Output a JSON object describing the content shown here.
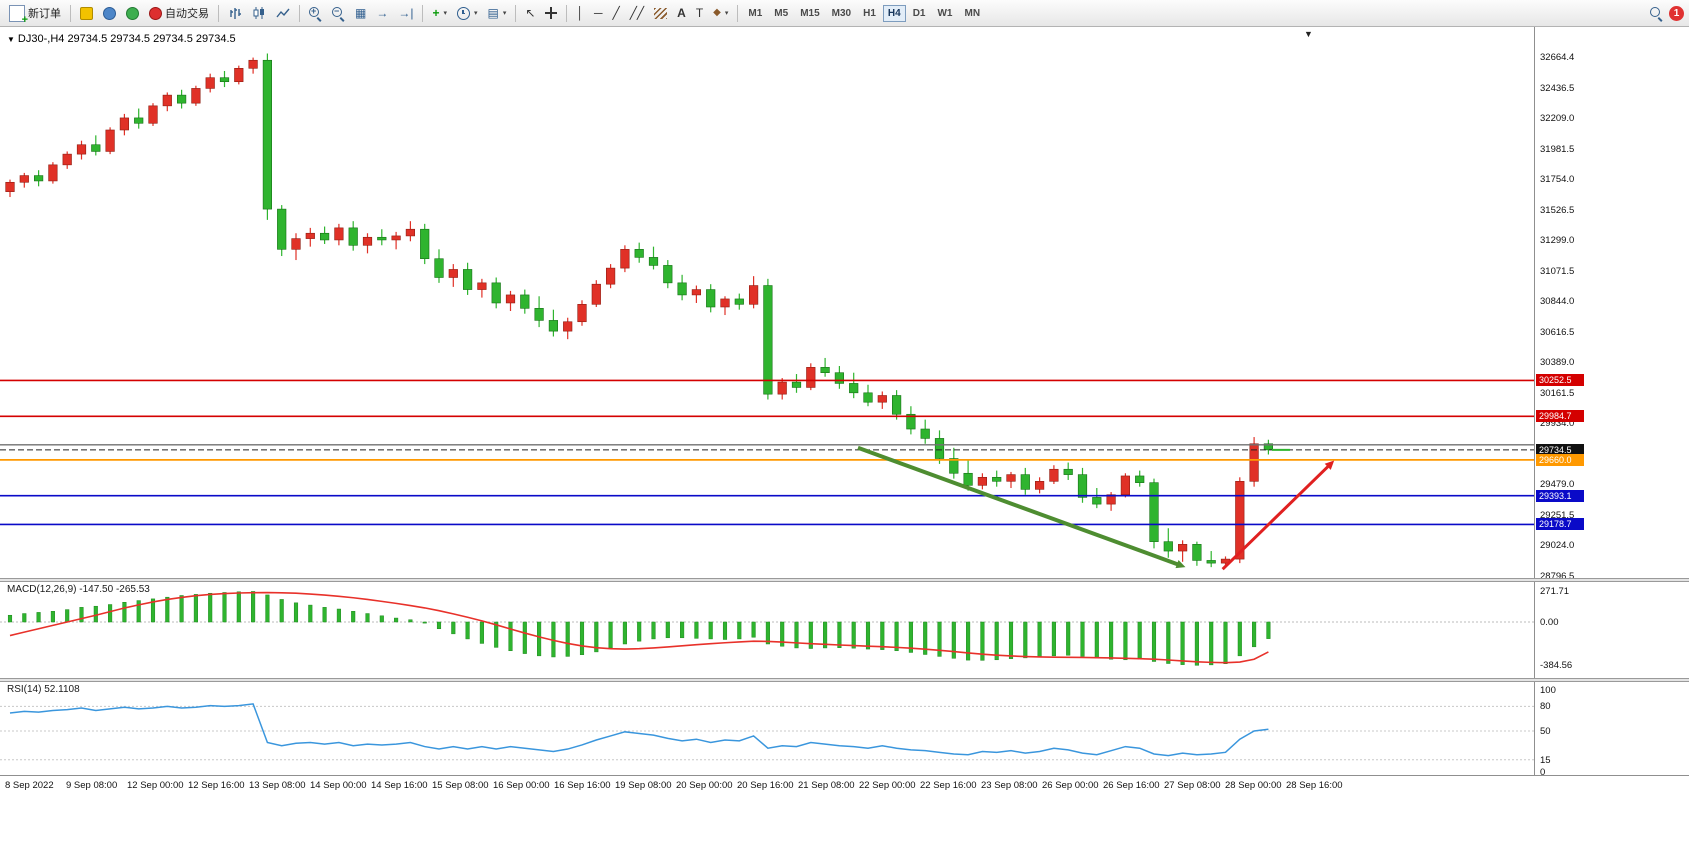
{
  "toolbar": {
    "new_order_label": "新订单",
    "autotrading_label": "自动交易",
    "timeframes": [
      "M1",
      "M5",
      "M15",
      "M30",
      "H1",
      "H4",
      "D1",
      "W1",
      "MN"
    ],
    "active_timeframe": "H4",
    "notification_count": "1"
  },
  "chart_data": {
    "type": "candlestick",
    "symbol": "DJ30-",
    "period": "H4",
    "title_display": "DJ30-,H4 29734.5 29734.5 29734.5 29734.5",
    "current_price": 29734.5,
    "colors": {
      "bull": "#e03127",
      "bear": "#2fb42f",
      "bull_stroke": "#8f1d12",
      "bear_stroke": "#157015",
      "macd_hist": "#2fb42f",
      "macd_signal": "#e8312a",
      "rsi_line": "#3a96dd",
      "line_red": "#d40000",
      "line_blue": "#0a0ac8",
      "line_orange": "#ff9900",
      "arrow_green": "#4e8d31",
      "arrow_red": "#e02020"
    },
    "price_axis": {
      "max": 32888,
      "min": 28779,
      "labels": [
        "32664.4",
        "32436.5",
        "32209.0",
        "31981.5",
        "31754.0",
        "31526.5",
        "31299.0",
        "31071.5",
        "30844.0",
        "30616.5",
        "30389.0",
        "30161.5",
        "29934.0",
        "29706.5",
        "29479.0",
        "29251.5",
        "29024.0",
        "28796.5"
      ]
    },
    "time_labels": [
      "8 Sep 2022",
      "9 Sep 08:00",
      "12 Sep 00:00",
      "12 Sep 16:00",
      "13 Sep 08:00",
      "14 Sep 00:00",
      "14 Sep 16:00",
      "15 Sep 08:00",
      "16 Sep 00:00",
      "16 Sep 16:00",
      "19 Sep 08:00",
      "20 Sep 00:00",
      "20 Sep 16:00",
      "21 Sep 08:00",
      "22 Sep 00:00",
      "22 Sep 16:00",
      "23 Sep 08:00",
      "26 Sep 00:00",
      "26 Sep 16:00",
      "27 Sep 08:00",
      "28 Sep 00:00",
      "28 Sep 16:00"
    ],
    "candles": [
      [
        31660,
        31750,
        31620,
        31730
      ],
      [
        31730,
        31800,
        31690,
        31780
      ],
      [
        31780,
        31820,
        31700,
        31740
      ],
      [
        31740,
        31880,
        31720,
        31860
      ],
      [
        31860,
        31960,
        31830,
        31940
      ],
      [
        31940,
        32040,
        31900,
        32010
      ],
      [
        32010,
        32080,
        31930,
        31960
      ],
      [
        31960,
        32140,
        31940,
        32120
      ],
      [
        32120,
        32240,
        32080,
        32210
      ],
      [
        32210,
        32280,
        32130,
        32170
      ],
      [
        32170,
        32320,
        32150,
        32300
      ],
      [
        32300,
        32400,
        32260,
        32380
      ],
      [
        32380,
        32420,
        32280,
        32320
      ],
      [
        32320,
        32450,
        32300,
        32430
      ],
      [
        32430,
        32540,
        32400,
        32510
      ],
      [
        32510,
        32560,
        32440,
        32480
      ],
      [
        32480,
        32600,
        32460,
        32580
      ],
      [
        32580,
        32660,
        32540,
        32640
      ],
      [
        32640,
        32690,
        31450,
        31530
      ],
      [
        31530,
        31560,
        31180,
        31230
      ],
      [
        31230,
        31350,
        31150,
        31310
      ],
      [
        31310,
        31390,
        31250,
        31350
      ],
      [
        31350,
        31400,
        31270,
        31300
      ],
      [
        31300,
        31420,
        31260,
        31390
      ],
      [
        31390,
        31440,
        31220,
        31260
      ],
      [
        31260,
        31350,
        31200,
        31320
      ],
      [
        31320,
        31380,
        31260,
        31300
      ],
      [
        31300,
        31360,
        31230,
        31330
      ],
      [
        31330,
        31440,
        31290,
        31380
      ],
      [
        31380,
        31420,
        31120,
        31160
      ],
      [
        31160,
        31230,
        30980,
        31020
      ],
      [
        31020,
        31120,
        30950,
        31080
      ],
      [
        31080,
        31130,
        30890,
        30930
      ],
      [
        30930,
        31010,
        30870,
        30980
      ],
      [
        30980,
        31020,
        30790,
        30830
      ],
      [
        30830,
        30920,
        30770,
        30890
      ],
      [
        30890,
        30930,
        30750,
        30790
      ],
      [
        30790,
        30880,
        30650,
        30700
      ],
      [
        30700,
        30780,
        30580,
        30620
      ],
      [
        30620,
        30720,
        30560,
        30690
      ],
      [
        30690,
        30850,
        30660,
        30820
      ],
      [
        30820,
        31000,
        30800,
        30970
      ],
      [
        30970,
        31120,
        30940,
        31090
      ],
      [
        31090,
        31260,
        31060,
        31230
      ],
      [
        31230,
        31280,
        31130,
        31170
      ],
      [
        31170,
        31250,
        31080,
        31110
      ],
      [
        31110,
        31150,
        30940,
        30980
      ],
      [
        30980,
        31040,
        30850,
        30890
      ],
      [
        30890,
        30960,
        30830,
        30930
      ],
      [
        30930,
        30970,
        30760,
        30800
      ],
      [
        30800,
        30880,
        30740,
        30860
      ],
      [
        30860,
        30900,
        30780,
        30820
      ],
      [
        30820,
        31030,
        30790,
        30960
      ],
      [
        30960,
        31010,
        30110,
        30150
      ],
      [
        30150,
        30270,
        30110,
        30240
      ],
      [
        30240,
        30300,
        30160,
        30200
      ],
      [
        30200,
        30380,
        30180,
        30350
      ],
      [
        30350,
        30420,
        30280,
        30310
      ],
      [
        30310,
        30360,
        30190,
        30230
      ],
      [
        30230,
        30310,
        30120,
        30160
      ],
      [
        30160,
        30220,
        30060,
        30090
      ],
      [
        30090,
        30170,
        30040,
        30140
      ],
      [
        30140,
        30180,
        29960,
        30000
      ],
      [
        30000,
        30060,
        29850,
        29890
      ],
      [
        29890,
        29960,
        29780,
        29820
      ],
      [
        29820,
        29880,
        29630,
        29670
      ],
      [
        29670,
        29750,
        29520,
        29560
      ],
      [
        29560,
        29660,
        29430,
        29470
      ],
      [
        29470,
        29560,
        29440,
        29530
      ],
      [
        29530,
        29580,
        29460,
        29500
      ],
      [
        29500,
        29570,
        29450,
        29550
      ],
      [
        29550,
        29600,
        29400,
        29440
      ],
      [
        29440,
        29530,
        29410,
        29500
      ],
      [
        29500,
        29620,
        29480,
        29590
      ],
      [
        29590,
        29640,
        29510,
        29550
      ],
      [
        29550,
        29600,
        29340,
        29380
      ],
      [
        29380,
        29450,
        29300,
        29330
      ],
      [
        29330,
        29420,
        29280,
        29400
      ],
      [
        29400,
        29560,
        29380,
        29540
      ],
      [
        29540,
        29580,
        29460,
        29490
      ],
      [
        29490,
        29520,
        29000,
        29050
      ],
      [
        29050,
        29150,
        28930,
        28980
      ],
      [
        28980,
        29060,
        28900,
        29030
      ],
      [
        29030,
        29050,
        28870,
        28910
      ],
      [
        28910,
        28980,
        28860,
        28890
      ],
      [
        28890,
        28940,
        28870,
        28920
      ],
      [
        28920,
        29530,
        28890,
        29500
      ],
      [
        29500,
        29830,
        29460,
        29780
      ],
      [
        29780,
        29810,
        29700,
        29734.5
      ]
    ],
    "hlines": [
      {
        "price": 30252.5,
        "label": "30252.5",
        "color": "#d40000",
        "width": 1.6
      },
      {
        "price": 29984.7,
        "label": "29984.7",
        "color": "#d40000",
        "width": 1.6
      },
      {
        "price": 29772.0,
        "label": "",
        "color": "#707070",
        "width": 1.4
      },
      {
        "price": 29734.5,
        "label": "29734.5",
        "color": "#222222",
        "width": 1,
        "style": "dashed",
        "badge": "#111111"
      },
      {
        "price": 29660.0,
        "label": "29660.0",
        "color": "#ff9900",
        "width": 1.8
      },
      {
        "price": 29393.1,
        "label": "29393.1",
        "color": "#0a0ac8",
        "width": 1.6
      },
      {
        "price": 29178.7,
        "label": "29178.7",
        "color": "#0a0ac8",
        "width": 1.6
      }
    ],
    "arrows": [
      {
        "from_bar": 59.3,
        "from_price": 29750,
        "to_bar": 82.2,
        "to_price": 28860,
        "color": "#4e8d31",
        "width": 4
      },
      {
        "from_bar": 84.8,
        "from_price": 28845,
        "to_bar": 92.6,
        "to_price": 29655,
        "color": "#e02020",
        "width": 3
      }
    ],
    "macd": {
      "display": "MACD(12,26,9) -147.50 -265.53",
      "main_value": -147.5,
      "signal_value": -265.53,
      "scale_labels": [
        "271.71",
        "0.00",
        "-384.56"
      ],
      "histogram": [
        60,
        75,
        85,
        95,
        110,
        130,
        140,
        155,
        175,
        190,
        205,
        220,
        235,
        245,
        255,
        262,
        268,
        271,
        240,
        200,
        170,
        150,
        130,
        115,
        95,
        75,
        55,
        35,
        20,
        -10,
        -60,
        -105,
        -150,
        -190,
        -225,
        -255,
        -280,
        -300,
        -310,
        -305,
        -290,
        -265,
        -230,
        -195,
        -170,
        -150,
        -140,
        -140,
        -145,
        -150,
        -155,
        -150,
        -135,
        -195,
        -215,
        -230,
        -235,
        -230,
        -228,
        -232,
        -240,
        -245,
        -255,
        -270,
        -288,
        -305,
        -322,
        -338,
        -340,
        -335,
        -325,
        -318,
        -310,
        -300,
        -295,
        -305,
        -320,
        -330,
        -335,
        -330,
        -350,
        -368,
        -378,
        -384,
        -380,
        -370,
        -300,
        -220,
        -147.5
      ],
      "signal": [
        -120,
        -90,
        -60,
        -30,
        0,
        30,
        60,
        92,
        124,
        152,
        178,
        200,
        218,
        233,
        244,
        252,
        257,
        260,
        261,
        259,
        255,
        248,
        239,
        228,
        215,
        200,
        183,
        165,
        146,
        125,
        100,
        72,
        42,
        10,
        -25,
        -62,
        -98,
        -132,
        -163,
        -190,
        -212,
        -228,
        -237,
        -240,
        -237,
        -230,
        -221,
        -211,
        -201,
        -192,
        -184,
        -177,
        -170,
        -172,
        -178,
        -185,
        -192,
        -198,
        -204,
        -209,
        -214,
        -219,
        -225,
        -232,
        -241,
        -251,
        -262,
        -274,
        -285,
        -294,
        -301,
        -306,
        -310,
        -312,
        -313,
        -314,
        -316,
        -319,
        -322,
        -325,
        -330,
        -337,
        -345,
        -353,
        -358,
        -361,
        -355,
        -330,
        -265.5
      ]
    },
    "rsi": {
      "display": "RSI(14) 52.1108",
      "value": 52.1108,
      "scale_labels": [
        "100",
        "80",
        "50",
        "15",
        "0"
      ],
      "levels": [
        80,
        50,
        15
      ],
      "values": [
        72,
        74,
        73,
        75,
        76,
        78,
        75,
        77,
        79,
        77,
        78,
        80,
        78,
        79,
        81,
        80,
        81,
        83,
        36,
        32,
        35,
        36,
        34,
        36,
        32,
        34,
        33,
        34,
        36,
        31,
        28,
        31,
        28,
        31,
        28,
        31,
        29,
        27,
        25,
        28,
        33,
        39,
        44,
        49,
        47,
        45,
        41,
        38,
        40,
        36,
        39,
        38,
        44,
        29,
        32,
        31,
        36,
        34,
        32,
        31,
        29,
        32,
        29,
        27,
        26,
        24,
        22,
        21,
        25,
        24,
        26,
        23,
        25,
        29,
        27,
        23,
        21,
        26,
        31,
        29,
        22,
        20,
        23,
        21,
        22,
        24,
        40,
        50,
        52.11
      ]
    }
  }
}
